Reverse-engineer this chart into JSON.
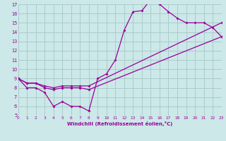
{
  "xlabel": "Windchill (Refroidissement éolien,°C)",
  "bg_color": "#cce8e8",
  "grid_color": "#aacccc",
  "line_color": "#990099",
  "xmin": 0,
  "xmax": 23,
  "ymin": 5,
  "ymax": 17,
  "line1_x": [
    0,
    1,
    2,
    3,
    4,
    5,
    6,
    7,
    8,
    9,
    10,
    11,
    12,
    13,
    14,
    15,
    16,
    17,
    18,
    19,
    20,
    21,
    22,
    23
  ],
  "line1_y": [
    9,
    8,
    8,
    7.5,
    6,
    6.5,
    6,
    6,
    5.5,
    9.0,
    9.5,
    11,
    14.2,
    16.2,
    16.3,
    17.5,
    17.0,
    16.2,
    15.5,
    15.0,
    15.0,
    15.0,
    14.5,
    13.5
  ],
  "line2_x": [
    0,
    1,
    2,
    3,
    4,
    5,
    6,
    7,
    8,
    23
  ],
  "line2_y": [
    9,
    8.5,
    8.5,
    8.2,
    8.0,
    8.2,
    8.2,
    8.2,
    8.2,
    15.0
  ],
  "line3_x": [
    0,
    1,
    2,
    3,
    4,
    5,
    6,
    7,
    8,
    23
  ],
  "line3_y": [
    9,
    8.5,
    8.5,
    8.0,
    7.8,
    8.0,
    8.0,
    8.0,
    7.8,
    13.5
  ]
}
